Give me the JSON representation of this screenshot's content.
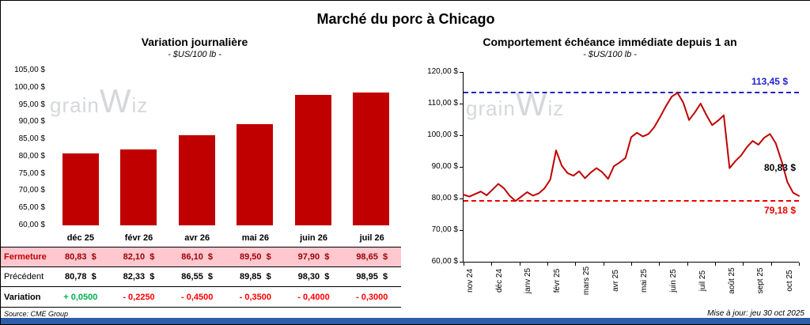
{
  "header": {
    "title": "Marché du porc à Chicago"
  },
  "watermark": {
    "text_pre": "grain",
    "text_w": "W",
    "text_post": "iz"
  },
  "footer": {
    "source": "Source: CME Group",
    "updated": "Mise à jour: jeu 30 oct 2025"
  },
  "chart_data": [
    {
      "type": "bar",
      "title": "Variation journalière",
      "subtitle": "- $US/100 lb -",
      "categories": [
        "déc 25",
        "févr 26",
        "avr 26",
        "mai 26",
        "juin 26",
        "juil 26"
      ],
      "values": [
        80.83,
        82.1,
        86.1,
        89.5,
        97.9,
        98.65
      ],
      "ylim": [
        60,
        105
      ],
      "ytick_step": 5,
      "y_tick_labels": [
        "105,00 $",
        "100,00 $",
        "95,00 $",
        "90,00 $",
        "85,00 $",
        "80,00 $",
        "75,00 $",
        "70,00 $",
        "65,00 $",
        "60,00 $"
      ],
      "bar_color": "#C00000",
      "grid": false
    },
    {
      "type": "line",
      "title": "Comportement échéance immédiate depuis 1 an",
      "subtitle": "- $US/100 lb -",
      "x_tick_labels": [
        "nov 24",
        "déc 24",
        "janv 25",
        "févr 25",
        "mars 25",
        "avr 25",
        "mai 25",
        "juin 25",
        "juil 25",
        "août 25",
        "sept 25",
        "oct 25"
      ],
      "values": [
        81.2,
        80.6,
        81.4,
        82.2,
        81.0,
        82.8,
        84.6,
        83.2,
        80.8,
        79.2,
        80.6,
        82.0,
        80.9,
        81.6,
        83.2,
        86.0,
        95.2,
        90.3,
        88.0,
        87.2,
        88.6,
        86.4,
        88.2,
        89.6,
        88.3,
        86.2,
        90.2,
        91.4,
        92.8,
        99.4,
        100.8,
        99.6,
        100.4,
        102.6,
        105.8,
        109.2,
        112.2,
        113.4,
        110.3,
        104.8,
        107.2,
        110.0,
        106.4,
        103.2,
        104.6,
        106.3,
        89.6,
        91.8,
        93.6,
        96.2,
        98.2,
        97.0,
        99.2,
        100.4,
        97.4,
        91.8,
        85.2,
        81.8,
        80.83
      ],
      "ylim": [
        60,
        120
      ],
      "ytick_step": 10,
      "y_tick_labels": [
        "120,00 $",
        "110,00 $",
        "100,00 $",
        "90,00 $",
        "80,00 $",
        "70,00 $",
        "60,00 $"
      ],
      "line_color": "#C00000",
      "max_line": {
        "value": 113.45,
        "label": "113,45 $",
        "color": "#2222CC"
      },
      "min_line": {
        "value": 79.18,
        "label": "79,18 $",
        "color": "#EE0000"
      },
      "last_point": {
        "value": 80.83,
        "label": "80,83 $",
        "color": "#000000"
      },
      "grid": false
    }
  ],
  "table": {
    "header": [
      "déc 25",
      "févr 26",
      "avr 26",
      "mai 26",
      "juin 26",
      "juil 26"
    ],
    "rows": [
      {
        "name": "fermeture",
        "label": "Fermeture",
        "values": [
          "80,83  $",
          "82,10  $",
          "86,10  $",
          "89,50  $",
          "97,90  $",
          "98,65  $"
        ]
      },
      {
        "name": "precedent",
        "label": "Précédent",
        "values": [
          "80,78  $",
          "82,33  $",
          "86,55  $",
          "89,85  $",
          "98,30  $",
          "98,95  $"
        ]
      },
      {
        "name": "variation",
        "label": "Variation",
        "values": [
          "+ 0,0500",
          "- 0,2250",
          "- 0,4500",
          "- 0,3500",
          "- 0,4000",
          "- 0,3000"
        ]
      }
    ],
    "colors": {
      "fermeture_bg": "#FFC7CE",
      "fermeture_text": "#9C0006",
      "positive": "#00B050",
      "negative": "#FF0000"
    }
  }
}
